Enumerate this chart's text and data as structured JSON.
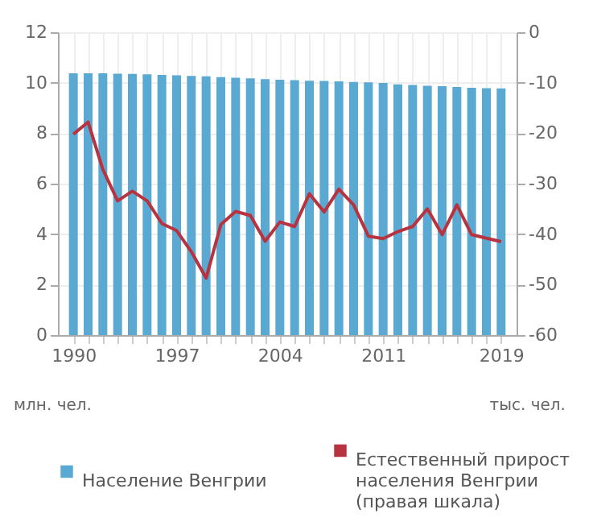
{
  "chart_data": {
    "type": "bar",
    "x": [
      1990,
      1991,
      1992,
      1993,
      1994,
      1995,
      1996,
      1997,
      1998,
      1999,
      2000,
      2001,
      2002,
      2003,
      2004,
      2005,
      2006,
      2007,
      2008,
      2009,
      2010,
      2011,
      2012,
      2013,
      2014,
      2015,
      2016,
      2017,
      2018,
      2019
    ],
    "series": [
      {
        "name": "Население Венгрии",
        "color": "#5aa9d2",
        "values": [
          10.37,
          10.37,
          10.37,
          10.36,
          10.35,
          10.33,
          10.31,
          10.29,
          10.27,
          10.25,
          10.22,
          10.2,
          10.17,
          10.14,
          10.12,
          10.1,
          10.08,
          10.07,
          10.05,
          10.03,
          10.01,
          9.99,
          9.93,
          9.91,
          9.88,
          9.86,
          9.83,
          9.8,
          9.78,
          9.77
        ]
      },
      {
        "name": "Естественный прирост населения Венгрии (правая шкала)",
        "color": "#b83340",
        "type": "line",
        "axis": "y2",
        "values": [
          -20.2,
          -17.8,
          -27.2,
          -33.4,
          -31.5,
          -33.4,
          -37.9,
          -39.3,
          -43.5,
          -48.7,
          -38.1,
          -35.5,
          -36.3,
          -41.4,
          -37.6,
          -38.5,
          -32.0,
          -35.6,
          -31.1,
          -34.2,
          -40.4,
          -40.9,
          -39.5,
          -38.5,
          -35.0,
          -40.1,
          -34.2,
          -40.1,
          -40.8,
          -41.5
        ]
      }
    ],
    "xlim": [
      1989.5,
      2019.5
    ],
    "xticks": [
      1990,
      {
        "value": 1991,
        "label": null
      },
      {
        "value": 1992,
        "label": null
      },
      {
        "value": 1993,
        "label": null
      },
      {
        "value": 1994,
        "label": null
      },
      {
        "value": 1995,
        "label": null
      },
      {
        "value": 1996,
        "label": null
      },
      1997,
      {
        "value": 1998,
        "label": null
      },
      {
        "value": 1999,
        "label": null
      },
      {
        "value": 2000,
        "label": null
      },
      {
        "value": 2001,
        "label": null
      },
      {
        "value": 2002,
        "label": null
      },
      {
        "value": 2003,
        "label": null
      },
      2004,
      {
        "value": 2005,
        "label": null
      },
      {
        "value": 2006,
        "label": null
      },
      {
        "value": 2007,
        "label": null
      },
      {
        "value": 2008,
        "label": null
      },
      {
        "value": 2009,
        "label": null
      },
      {
        "value": 2010,
        "label": null
      },
      2011,
      {
        "value": 2012,
        "label": null
      },
      {
        "value": 2013,
        "label": null
      },
      {
        "value": 2014,
        "label": null
      },
      {
        "value": 2015,
        "label": null
      },
      {
        "value": 2016,
        "label": null
      },
      {
        "value": 2017,
        "label": null
      },
      {
        "value": 2018,
        "label": null
      },
      2019
    ],
    "ylim": [
      0,
      12
    ],
    "yticks": [
      0,
      2,
      4,
      6,
      8,
      10,
      12
    ],
    "y2lim": [
      -60,
      0
    ],
    "y2ticks": [
      -60,
      -50,
      -40,
      -30,
      -20,
      -10,
      0
    ],
    "ylabel": "млн. чел.",
    "y2label": "тыс. чел.",
    "grid": true,
    "legend": "bottom",
    "line_style": "solid"
  }
}
